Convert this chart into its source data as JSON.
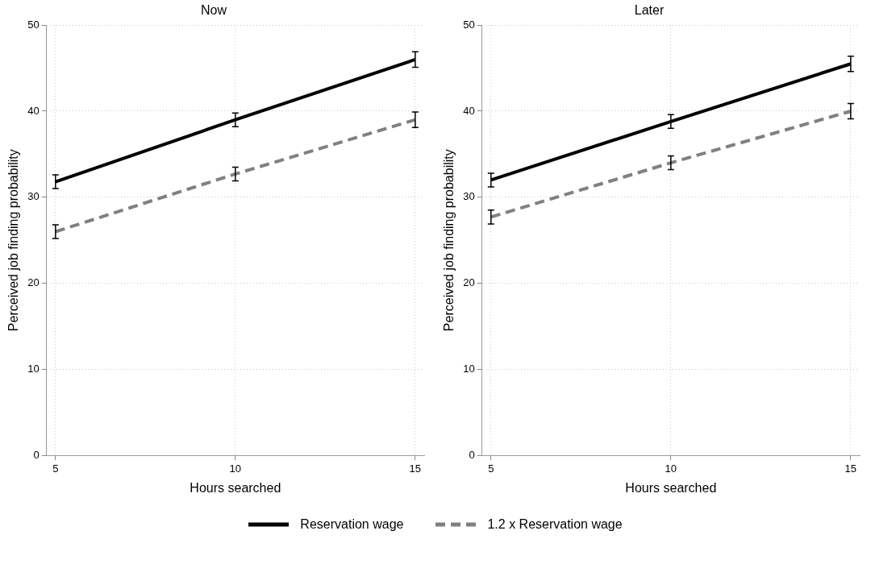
{
  "chart_data": [
    {
      "type": "line",
      "title": "Now",
      "xlabel": "Hours searched",
      "ylabel": "Perceived job finding probability",
      "x": [
        5,
        10,
        15
      ],
      "xlim": [
        4.75,
        15.25
      ],
      "xticks": [
        5,
        10,
        15
      ],
      "ylim": [
        0,
        50
      ],
      "yticks": [
        0,
        10,
        20,
        30,
        40,
        50
      ],
      "grid": true,
      "legend": "bottom",
      "marker": "none",
      "series": [
        {
          "name": "Reservation wage",
          "color": "#000000",
          "line_style": "solid",
          "values": [
            31.8,
            39.0,
            46.0
          ],
          "errors": [
            0.8,
            0.8,
            0.9
          ]
        },
        {
          "name": "1.2 x Reservation wage",
          "color": "#808080",
          "line_style": "dashed",
          "values": [
            26.0,
            32.7,
            39.0
          ],
          "errors": [
            0.8,
            0.8,
            0.9
          ]
        }
      ]
    },
    {
      "type": "line",
      "title": "Later",
      "xlabel": "Hours searched",
      "ylabel": "Perceived job finding probability",
      "x": [
        5,
        10,
        15
      ],
      "xlim": [
        4.75,
        15.25
      ],
      "xticks": [
        5,
        10,
        15
      ],
      "ylim": [
        0,
        50
      ],
      "yticks": [
        0,
        10,
        20,
        30,
        40,
        50
      ],
      "grid": true,
      "legend": false,
      "marker": "none",
      "series": [
        {
          "color": "#000000",
          "line_style": "solid",
          "values": [
            32.0,
            38.8,
            45.5
          ],
          "errors": [
            0.8,
            0.8,
            0.9
          ]
        },
        {
          "color": "#808080",
          "line_style": "dashed",
          "values": [
            27.7,
            34.0,
            40.0
          ],
          "errors": [
            0.8,
            0.8,
            0.9
          ]
        }
      ]
    }
  ]
}
